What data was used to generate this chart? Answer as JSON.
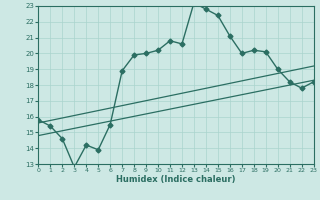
{
  "xlabel": "Humidex (Indice chaleur)",
  "xlim": [
    0,
    23
  ],
  "ylim": [
    13,
    23
  ],
  "yticks": [
    13,
    14,
    15,
    16,
    17,
    18,
    19,
    20,
    21,
    22,
    23
  ],
  "xticks": [
    0,
    1,
    2,
    3,
    4,
    5,
    6,
    7,
    8,
    9,
    10,
    11,
    12,
    13,
    14,
    15,
    16,
    17,
    18,
    19,
    20,
    21,
    22,
    23
  ],
  "bg_color": "#cde8e4",
  "line_color": "#2b6e62",
  "grid_color": "#aad4ce",
  "line1_x": [
    0,
    1,
    2,
    3,
    4,
    5,
    6,
    7,
    8,
    9,
    10,
    11,
    12,
    13,
    14,
    15,
    16,
    17,
    18,
    19,
    20,
    21,
    22,
    23
  ],
  "line1_y": [
    15.8,
    15.4,
    14.6,
    12.8,
    14.2,
    13.9,
    15.5,
    18.9,
    19.9,
    20.0,
    20.2,
    20.8,
    20.6,
    23.2,
    22.8,
    22.4,
    21.1,
    20.0,
    20.2,
    20.1,
    19.0,
    18.2,
    17.8,
    18.2
  ],
  "line2_x": [
    0,
    23
  ],
  "line2_y": [
    15.6,
    19.2
  ],
  "line3_x": [
    0,
    23
  ],
  "line3_y": [
    14.8,
    18.3
  ]
}
